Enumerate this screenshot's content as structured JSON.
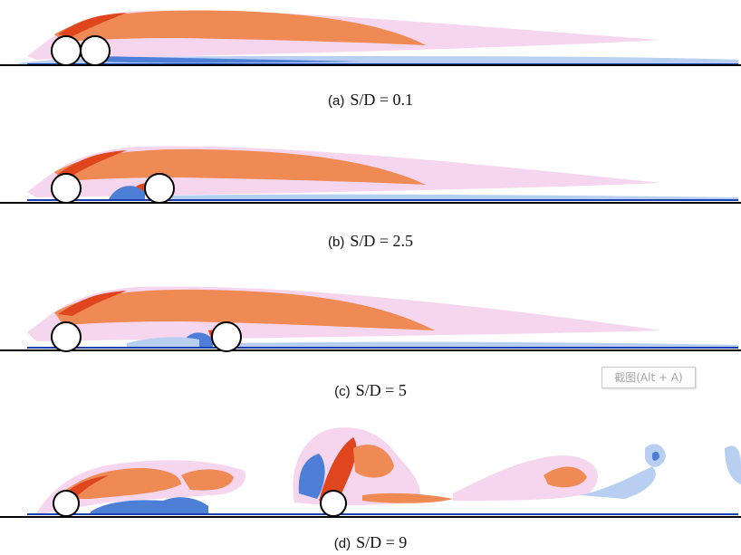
{
  "panels": [
    {
      "tag": "(a)",
      "eq": "S/D = 0.1"
    },
    {
      "tag": "(b)",
      "eq": "S/D = 2.5"
    },
    {
      "tag": "(c)",
      "eq": "S/D = 5"
    },
    {
      "tag": "(d)",
      "eq": "S/D = 9"
    }
  ],
  "watermark": "截图(Alt + A)",
  "colors": {
    "positive_vorticity": "#f08a55",
    "positive_core": "#e0461e",
    "negative_vorticity": "#4d7fd6",
    "negative_core": "#1a3fb0",
    "halo": "#f6d6ef",
    "cylinder": "#ffffff",
    "wall": "#000000"
  }
}
